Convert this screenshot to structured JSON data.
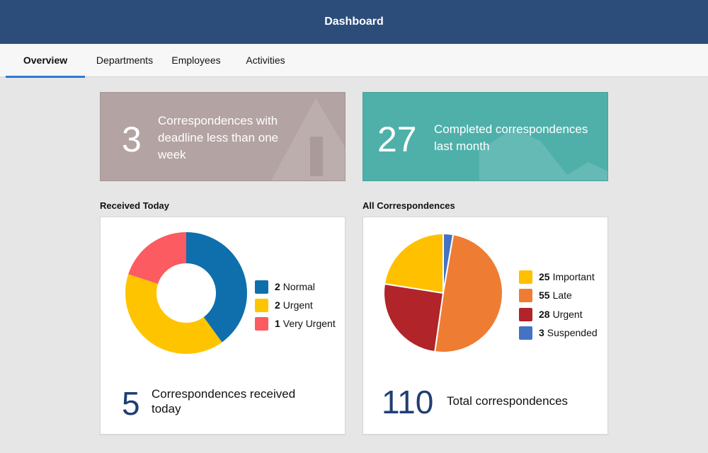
{
  "header": {
    "title": "Dashboard"
  },
  "tabs": [
    {
      "label": "Overview",
      "active": true
    },
    {
      "label": "Departments",
      "active": false
    },
    {
      "label": "Employees",
      "active": false
    },
    {
      "label": "Activities",
      "active": false
    }
  ],
  "tiles": {
    "deadline": {
      "value": "3",
      "label": "Correspondences with deadline less than one week",
      "color": "#b4a3a3",
      "icon": "warning-icon"
    },
    "completed": {
      "value": "27",
      "label": "Completed correspondences last month",
      "color": "#4fb0aa",
      "icon": "area-chart-icon"
    }
  },
  "received_today": {
    "title": "Received Today",
    "total": "5",
    "total_label": "Correspondences received today",
    "legend": [
      {
        "count": "2",
        "label": "Normal",
        "color": "#0f6fad"
      },
      {
        "count": "2",
        "label": "Urgent",
        "color": "#ffc400"
      },
      {
        "count": "1",
        "label": "Very Urgent",
        "color": "#fb5b61"
      }
    ]
  },
  "all_correspondences": {
    "title": "All Correspondences",
    "total": "110",
    "total_label": "Total correspondences",
    "legend": [
      {
        "count": "25",
        "label": "Important",
        "color": "#ffc000"
      },
      {
        "count": "55",
        "label": "Late",
        "color": "#ee7d33"
      },
      {
        "count": "28",
        "label": "Urgent",
        "color": "#b0242a"
      },
      {
        "count": "3",
        "label": "Suspended",
        "color": "#4473c4"
      }
    ]
  },
  "chart_data": [
    {
      "type": "pie",
      "variant": "donut",
      "categories": [
        "Normal",
        "Urgent",
        "Very Urgent"
      ],
      "values": [
        2,
        2,
        1
      ],
      "colors": [
        "#0f6fad",
        "#ffc400",
        "#fb5b61"
      ]
    },
    {
      "type": "pie",
      "categories": [
        "Suspended",
        "Late",
        "Urgent",
        "Important"
      ],
      "values": [
        3,
        55,
        28,
        25
      ],
      "colors": [
        "#4473c4",
        "#ee7d33",
        "#b0242a",
        "#ffc000"
      ]
    }
  ]
}
